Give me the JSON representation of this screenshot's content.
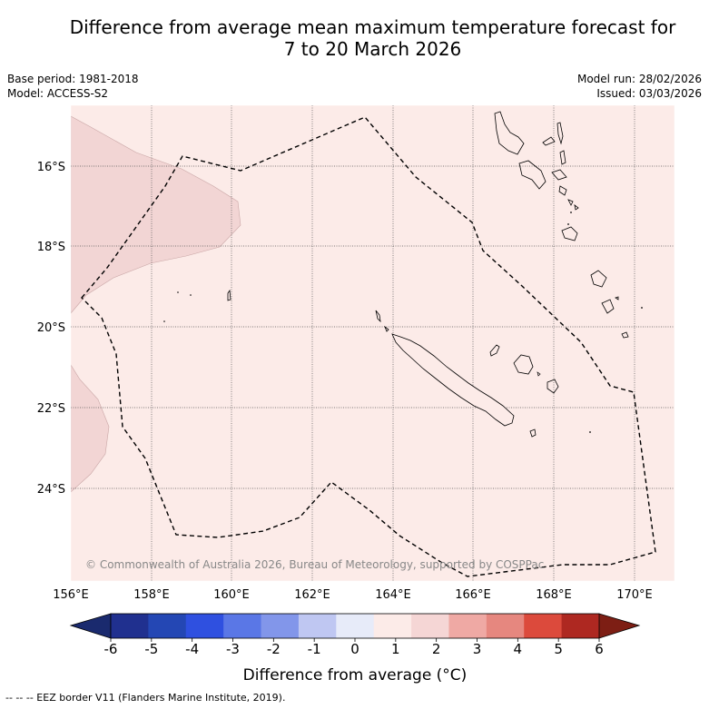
{
  "title_line1": "Difference from average mean maximum temperature forecast for",
  "title_line2": "7 to 20 March 2026",
  "base_period": "Base period: 1981-2018",
  "model": "Model: ACCESS-S2",
  "model_run": "Model run: 28/02/2026",
  "issued": "Issued: 03/03/2026",
  "copyright": "© Commonwealth of Australia 2026, Bureau of Meteorology, supported by COSPPac",
  "lon_labels": [
    "156°E",
    "158°E",
    "160°E",
    "162°E",
    "164°E",
    "166°E",
    "168°E",
    "170°E"
  ],
  "lat_labels": [
    "16°S",
    "18°S",
    "20°S",
    "22°S",
    "24°S"
  ],
  "colorbar": {
    "ticks": [
      "-6",
      "-5",
      "-4",
      "-3",
      "-2",
      "-1",
      "0",
      "1",
      "2",
      "3",
      "4",
      "5",
      "6"
    ],
    "colors": [
      "#20308f",
      "#2447b4",
      "#2f50e0",
      "#5a77e6",
      "#8296ea",
      "#bfc7f2",
      "#e7ebf9",
      "#fcebe8",
      "#f5d6d5",
      "#efa9a4",
      "#e6877f",
      "#dc4a3c",
      "#ae2821"
    ],
    "under_color": "#1a2a6e",
    "over_color": "#7d1e14",
    "label": "Difference from average (°C)"
  },
  "legend_eez": "--  --  -- EEZ border V11 (Flanders Marine Institute, 2019).",
  "fill_colors": {
    "background_anomaly": "#fcebe8",
    "warmer_anomaly": "#f2d5d4"
  }
}
